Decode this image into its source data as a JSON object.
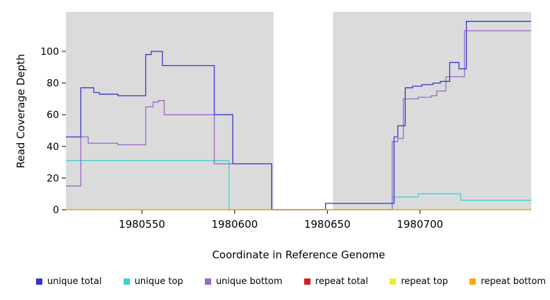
{
  "chart_data": {
    "type": "line",
    "subtype": "step-after",
    "title": "",
    "xlabel": "Coordinate in Reference Genome",
    "ylabel": "Read Coverage Depth",
    "x_range": [
      1980509,
      1980760
    ],
    "y_range": [
      0,
      125
    ],
    "x_ticks": [
      "1980550",
      "1980600",
      "1980650",
      "1980700"
    ],
    "x_tick_values": [
      1980550,
      1980600,
      1980650,
      1980700
    ],
    "y_ticks": [
      "0",
      "20",
      "40",
      "60",
      "80",
      "100"
    ],
    "y_tick_values": [
      0,
      20,
      40,
      60,
      80,
      100
    ],
    "grid": false,
    "plot_bg": "#DBDBDB",
    "page_bg": "#FFFFFF",
    "gap_region": {
      "x_start": 1980621,
      "x_end": 1980653,
      "color": "#FFFFFF"
    },
    "legend_position": "bottom",
    "draw_order": [
      "repeat total",
      "repeat top",
      "unique top",
      "unique bottom",
      "unique total",
      "repeat bottom"
    ],
    "series": [
      {
        "name": "unique total",
        "color": "#3333CC",
        "points": [
          [
            1980509,
            46
          ],
          [
            1980517,
            77
          ],
          [
            1980524,
            74
          ],
          [
            1980527,
            73
          ],
          [
            1980537,
            72
          ],
          [
            1980552,
            98
          ],
          [
            1980555,
            100
          ],
          [
            1980561,
            91
          ],
          [
            1980589,
            60
          ],
          [
            1980599,
            29
          ],
          [
            1980620,
            0
          ],
          [
            1980649,
            4
          ],
          [
            1980686,
            46
          ],
          [
            1980688,
            53
          ],
          [
            1980692,
            77
          ],
          [
            1980696,
            78
          ],
          [
            1980701,
            79
          ],
          [
            1980707,
            80
          ],
          [
            1980711,
            81
          ],
          [
            1980716,
            93
          ],
          [
            1980721,
            89
          ],
          [
            1980725,
            119
          ],
          [
            1980760,
            119
          ]
        ]
      },
      {
        "name": "unique top",
        "color": "#3FCFCF",
        "points": [
          [
            1980509,
            31
          ],
          [
            1980597,
            0
          ],
          [
            1980649,
            4
          ],
          [
            1980685,
            8
          ],
          [
            1980699,
            10
          ],
          [
            1980722,
            6
          ],
          [
            1980760,
            6
          ]
        ]
      },
      {
        "name": "unique bottom",
        "color": "#9966CC",
        "points": [
          [
            1980509,
            15
          ],
          [
            1980517,
            46
          ],
          [
            1980521,
            42
          ],
          [
            1980537,
            41
          ],
          [
            1980552,
            65
          ],
          [
            1980556,
            68
          ],
          [
            1980559,
            69
          ],
          [
            1980562,
            60
          ],
          [
            1980589,
            29
          ],
          [
            1980620,
            0
          ],
          [
            1980685,
            43
          ],
          [
            1980688,
            45
          ],
          [
            1980691,
            70
          ],
          [
            1980699,
            71
          ],
          [
            1980706,
            72
          ],
          [
            1980709,
            75
          ],
          [
            1980714,
            84
          ],
          [
            1980724,
            113
          ],
          [
            1980760,
            113
          ]
        ]
      },
      {
        "name": "repeat total",
        "color": "#CC2222",
        "points": [
          [
            1980509,
            0
          ],
          [
            1980760,
            0
          ]
        ]
      },
      {
        "name": "repeat top",
        "color": "#EDED2E",
        "points": [
          [
            1980509,
            0
          ],
          [
            1980760,
            0
          ]
        ]
      },
      {
        "name": "repeat bottom",
        "color": "#FFA500",
        "points": [
          [
            1980509,
            0
          ],
          [
            1980760,
            0
          ]
        ]
      }
    ]
  }
}
